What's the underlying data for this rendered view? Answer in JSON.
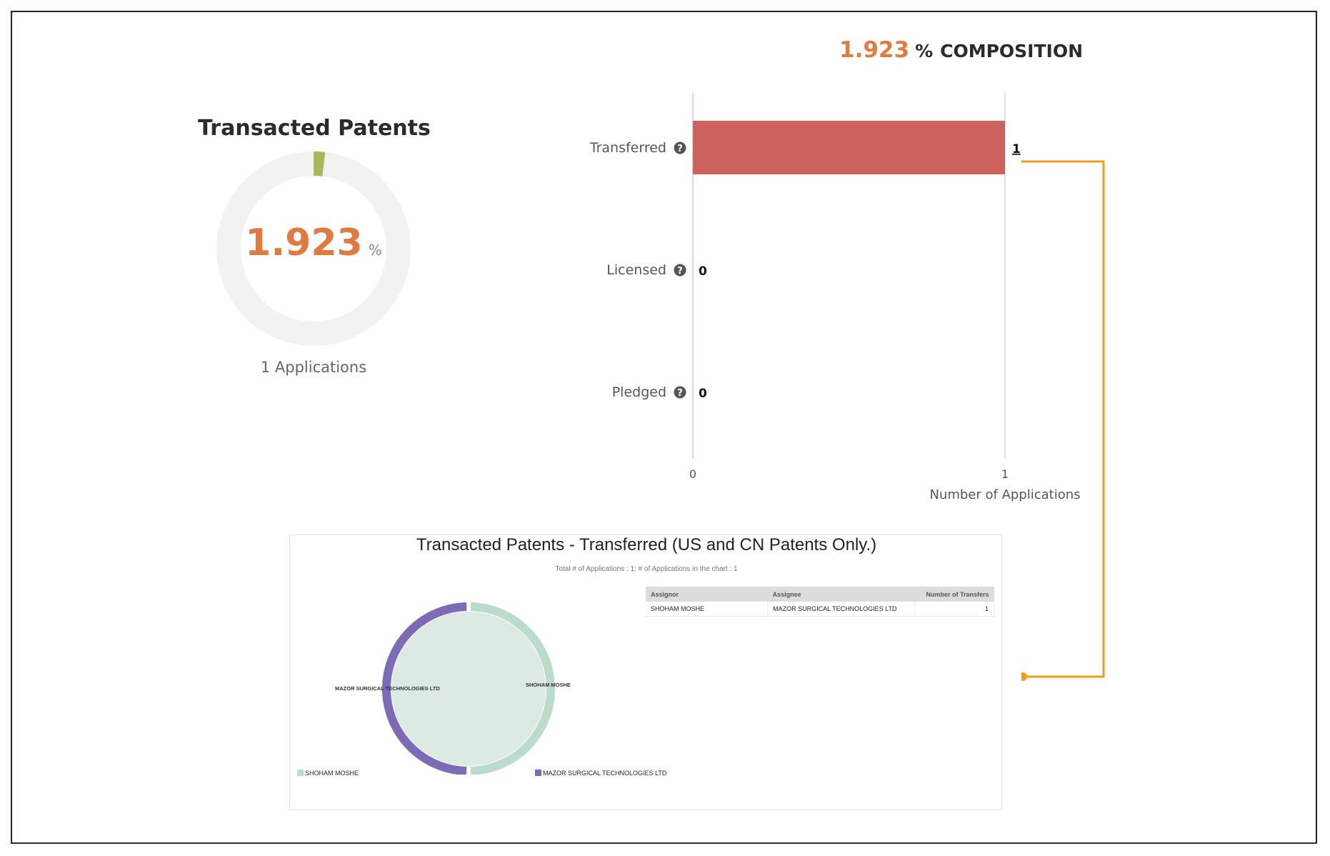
{
  "donut": {
    "title": "Transacted Patents",
    "value": "1.923",
    "unit": "%",
    "applications_label": "1 Applications",
    "percent": 1.923,
    "colors": {
      "track": "#f2f3f0",
      "fill": "#a9b85a",
      "value": "#e07a3f"
    }
  },
  "composition": {
    "value": "1.923",
    "percent_sign": "%",
    "label": "COMPOSITION"
  },
  "panel": {
    "title": "Transacted Patents - Transferred (US and CN Patents Only.)",
    "subtitle": "Total # of Applications : 1; # of Applications in the chart : 1",
    "table": {
      "headers": [
        "Assignor",
        "Assignee",
        "Number of Transfers"
      ],
      "rows": [
        [
          "SHOHAM MOSHE",
          "MAZOR SURGICAL TECHNOLOGIES LTD",
          "1"
        ]
      ]
    }
  },
  "chart_data": [
    {
      "type": "bar",
      "orientation": "horizontal",
      "categories": [
        "Transferred",
        "Licensed",
        "Pledged"
      ],
      "values": [
        1,
        0,
        0
      ],
      "data_labels": [
        "1",
        "0",
        "0"
      ],
      "xlim": [
        0,
        1
      ],
      "xticks": [
        "0",
        "1"
      ],
      "xlabel": "Number of Applications",
      "color": "#cd625d",
      "help_icon": "question-circle-icon"
    },
    {
      "type": "pie",
      "style": "chord",
      "labels": [
        "SHOHAM MOSHE",
        "MAZOR SURGICAL TECHNOLOGIES LTD"
      ],
      "values": [
        1,
        1
      ],
      "colors": [
        "#b9dccb",
        "#7e6bb5"
      ],
      "legend": [
        "SHOHAM MOSHE",
        "MAZOR SURGICAL TECHNOLOGIES LTD"
      ],
      "legend_position": "bottom"
    }
  ]
}
